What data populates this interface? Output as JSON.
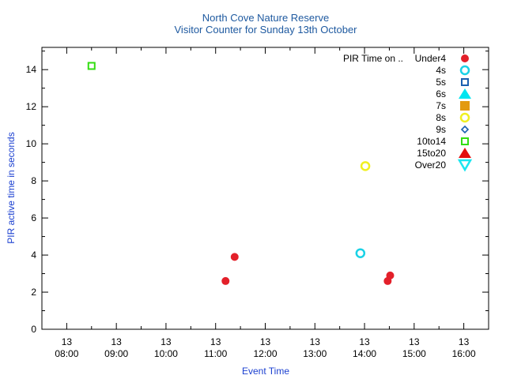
{
  "chart_data": {
    "type": "scatter",
    "title": "North Cove Nature Reserve",
    "subtitle": "Visitor Counter for Sunday 13th October",
    "xlabel": "Event Time",
    "ylabel": "PIR active time in seconds",
    "xlim": [
      "07:30",
      "16:30"
    ],
    "ylim": [
      0,
      15.2
    ],
    "x_ticks": [
      {
        "day": "13",
        "time": "08:00"
      },
      {
        "day": "13",
        "time": "09:00"
      },
      {
        "day": "13",
        "time": "10:00"
      },
      {
        "day": "13",
        "time": "11:00"
      },
      {
        "day": "13",
        "time": "12:00"
      },
      {
        "day": "13",
        "time": "13:00"
      },
      {
        "day": "13",
        "time": "14:00"
      },
      {
        "day": "13",
        "time": "15:00"
      },
      {
        "day": "13",
        "time": "16:00"
      }
    ],
    "y_ticks": [
      "0",
      "2",
      "4",
      "6",
      "8",
      "10",
      "12",
      "14"
    ],
    "grid": false,
    "legend_title": "PIR Time on ..",
    "legend_position": "top-right",
    "series": [
      {
        "name": "Under4",
        "color": "#e3202a",
        "marker": "circle-filled",
        "points": [
          {
            "x": "11:12",
            "y": 2.6
          },
          {
            "x": "11:23",
            "y": 3.9
          },
          {
            "x": "14:28",
            "y": 2.6
          },
          {
            "x": "14:31",
            "y": 2.9
          }
        ]
      },
      {
        "name": "4s",
        "color": "#1ad2e6",
        "marker": "circle-open",
        "points": [
          {
            "x": "13:55",
            "y": 4.1
          }
        ]
      },
      {
        "name": "5s",
        "color": "#1a5fb0",
        "marker": "square-open",
        "points": []
      },
      {
        "name": "6s",
        "color": "#00e5f0",
        "marker": "triangle-up-filled",
        "points": []
      },
      {
        "name": "7s",
        "color": "#e39a10",
        "marker": "square-filled",
        "points": []
      },
      {
        "name": "8s",
        "color": "#f0f020",
        "marker": "circle-open",
        "points": [
          {
            "x": "14:01",
            "y": 8.8
          }
        ]
      },
      {
        "name": "9s",
        "color": "#1a5fb0",
        "marker": "diamond-open",
        "points": []
      },
      {
        "name": "10to14",
        "color": "#33dd11",
        "marker": "square-open",
        "points": [
          {
            "x": "08:30",
            "y": 14.2
          }
        ]
      },
      {
        "name": "15to20",
        "color": "#e31010",
        "marker": "triangle-up-filled",
        "points": []
      },
      {
        "name": "Over20",
        "color": "#1ae6f0",
        "marker": "triangle-down-open",
        "points": []
      }
    ]
  }
}
